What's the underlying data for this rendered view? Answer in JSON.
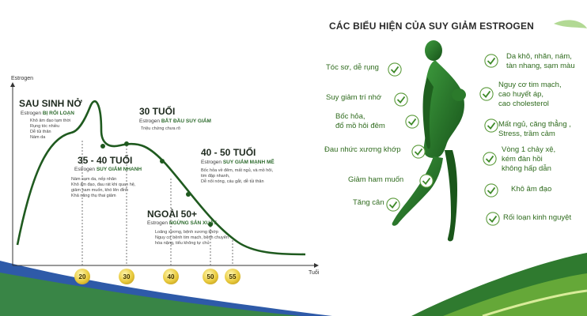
{
  "left": {
    "y_axis_label": "Estrogen",
    "x_axis_label": "Tuổi",
    "ages": [
      "20",
      "30",
      "40",
      "50",
      "55"
    ],
    "stages": {
      "postpartum": {
        "title": "SAU SINH NỞ",
        "sub_prefix": "Estrogen ",
        "sub_bold": "BỊ RỐI LOẠN",
        "notes": [
          "Khô âm đạo tạm thời",
          "Rụng tóc nhiều",
          "Dễ tủi thân",
          "Nám da"
        ]
      },
      "age30": {
        "title": "30 TUỔI",
        "sub_prefix": "Estrogen ",
        "sub_bold": "BẮT ĐẦU SUY GIẢM",
        "notes": [
          "Triệu chứng chưa rõ"
        ]
      },
      "age35_40": {
        "title": "35 - 40 TUỔI",
        "sub_prefix": "Estrogen ",
        "sub_bold": "SUY GIẢM NHANH",
        "notes": [
          "Nám sạm da, nếp nhăn",
          "Khô âm đạo, đau rát khi quan hệ,",
          "giảm ham muốn, khó lên đỉnh",
          "Khả năng thụ thai giảm"
        ]
      },
      "age40_50": {
        "title": "40 - 50 TUỔI",
        "sub_prefix": "Estrogen ",
        "sub_bold": "SUY GIẢM MẠNH MẼ",
        "notes": [
          "Bốc hỏa về đêm, mất ngủ, và mồ hôi,",
          "tim đập nhanh,",
          "Dễ nổi nóng, cáu gắt, dễ tủi thân"
        ]
      },
      "age50plus": {
        "title": "NGOÀI 50+",
        "sub_prefix": "Estrogen ",
        "sub_bold": "NGỪNG SẢN XUẤT",
        "notes": [
          "Loãng xương, bệnh xương khớp",
          "Nguy cơ bệnh tim mạch, bệnh chuyển",
          "hóa nặng, tiểu không tự chủ"
        ]
      }
    }
  },
  "right": {
    "title": "CÁC BIỂU HIỆN CỦA SUY GIẢM ESTROGEN",
    "symptoms_left": [
      "Tóc sơ, dễ rụng",
      "Suy giảm trí nhớ",
      "Bốc hỏa,\nđổ mồ hôi đêm",
      "Đau nhức xương khớp",
      "Giảm ham muốn",
      "Tăng cân"
    ],
    "symptoms_right": [
      "Da khô, nhăn, nám,\ntàn nhang, sạm màu",
      "Nguy cơ tim mạch,\ncao huyết áp,\ncao cholesterol",
      "Mất ngủ, căng thẳng ,\nStress, trầm cảm",
      "Vòng 1 chảy xệ,\nkém đàn hồi\nkhông hấp dẫn",
      "Khô âm đạo",
      "Rối loạn kinh nguyệt"
    ]
  },
  "colors": {
    "green_dark": "#1f5a1f",
    "green_mid": "#3f8a2a",
    "gold": "#e8c93b",
    "blue_band": "#2e5aa8"
  }
}
